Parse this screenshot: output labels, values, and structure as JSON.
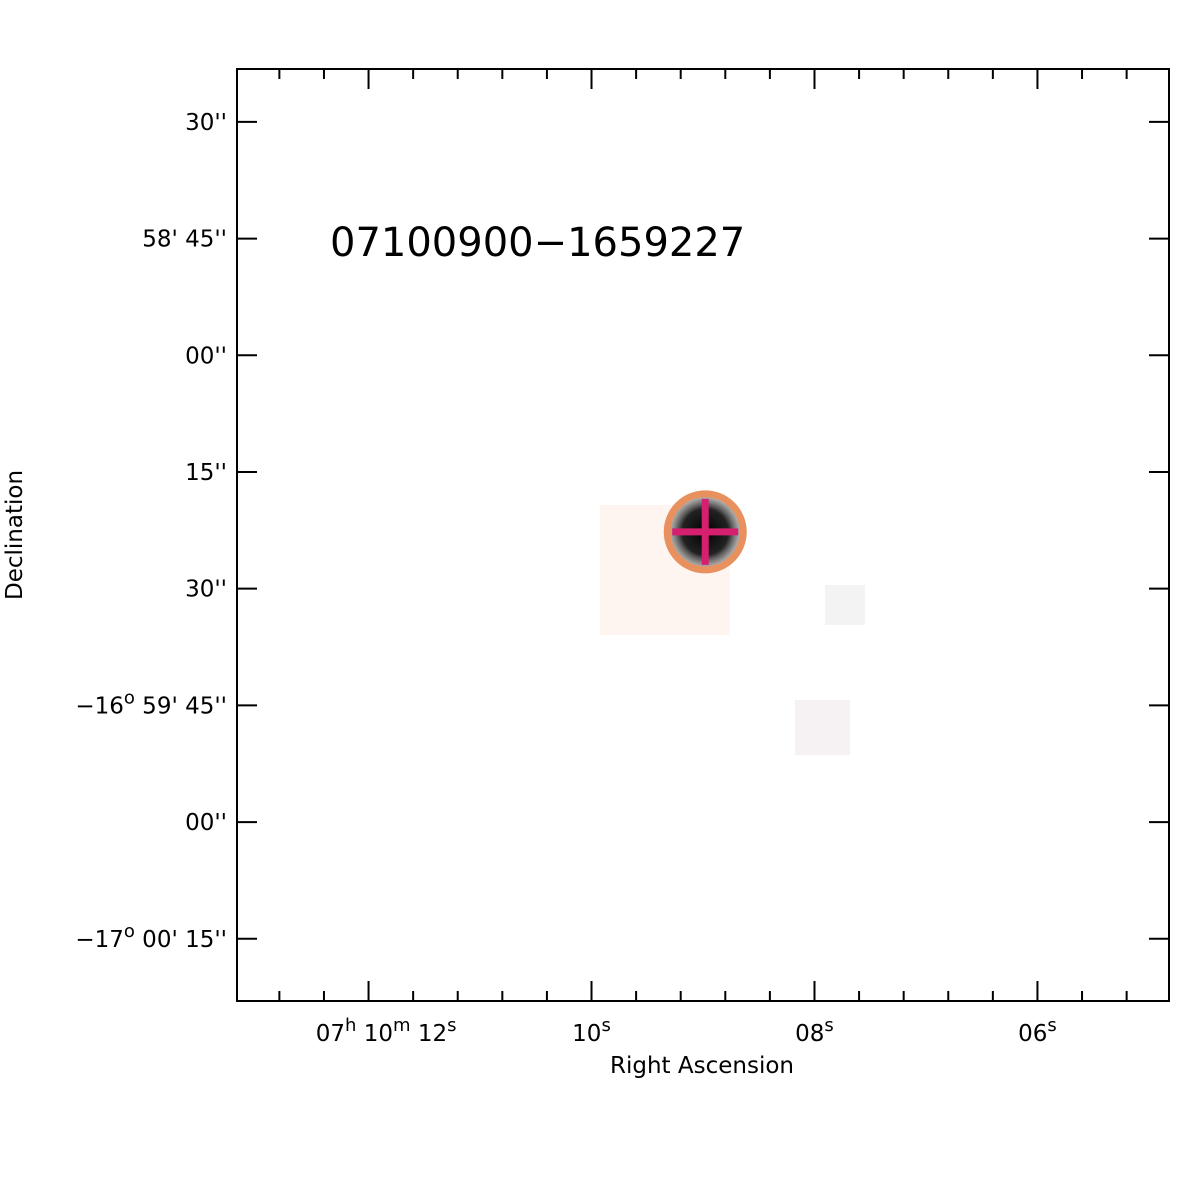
{
  "chart_data": {
    "type": "image",
    "title": "07100900−1659227",
    "xlabel": "Right Ascension",
    "ylabel": "Declination",
    "xlim": [
      13.18,
      4.82
    ],
    "ylim": [
      -61223.0,
      -61103.2
    ],
    "xticks": [
      {
        "value": 12,
        "label": [
          "07",
          "h",
          " 10",
          "m",
          " 12",
          "s"
        ]
      },
      {
        "value": 10,
        "label": [
          "10",
          "s"
        ]
      },
      {
        "value": 8,
        "label": [
          "08",
          "s"
        ]
      },
      {
        "value": 6,
        "label": [
          "06",
          "s"
        ]
      }
    ],
    "xminorticks": [
      12.8,
      12.4,
      11.6,
      11.2,
      10.8,
      10.4,
      9.6,
      9.2,
      8.8,
      8.4,
      7.6,
      7.2,
      6.8,
      6.4,
      5.6,
      5.2
    ],
    "yticks": [
      {
        "value": -61110,
        "label": [
          "30''"
        ]
      },
      {
        "value": -61125,
        "label": [
          "58' 45''"
        ]
      },
      {
        "value": -61140,
        "label": [
          "00''"
        ]
      },
      {
        "value": -61155,
        "label": [
          "15''"
        ]
      },
      {
        "value": -61170,
        "label": [
          "30''"
        ]
      },
      {
        "value": -61185,
        "label": [
          "−16",
          "o",
          " 59' 45''"
        ]
      },
      {
        "value": -61200,
        "label": [
          "00''"
        ]
      },
      {
        "value": -61215,
        "label": [
          "−17",
          "o",
          " 00' 15''"
        ]
      }
    ],
    "source": {
      "x": 8.98,
      "y": -61162.7,
      "circle_color": "#e8915e",
      "cross_color": "#d6206f"
    },
    "title_color": "#1a5a3a"
  }
}
